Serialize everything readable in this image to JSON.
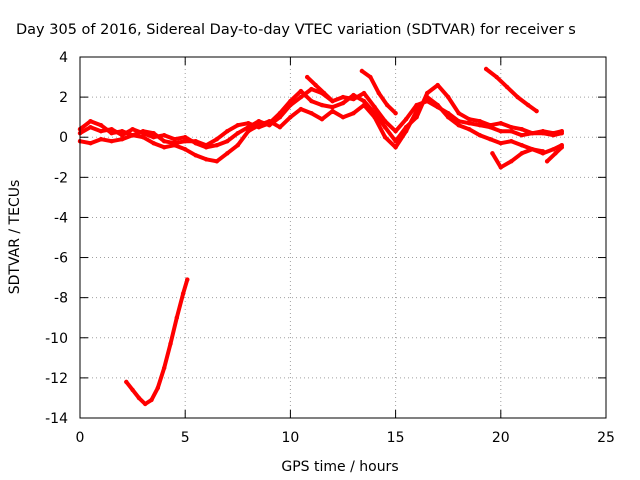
{
  "chart_data": {
    "type": "scatter",
    "title": "Day 305 of 2016, Sidereal Day-to-day VTEC variation (SDTVAR) for receiver s",
    "xlabel": "GPS time / hours",
    "ylabel": "SDTVAR / TECUs",
    "xlim": [
      0,
      25
    ],
    "ylim": [
      -14,
      4
    ],
    "x_ticks": [
      "0",
      "5",
      "10",
      "15",
      "20",
      "25"
    ],
    "y_ticks": [
      "4",
      "2",
      "0",
      "-2",
      "-4",
      "-6",
      "-8",
      "-10",
      "-12",
      "-14"
    ],
    "grid": true,
    "series_color": "#ff0000",
    "series": [
      {
        "segments": [
          {
            "x": [
              0.0,
              0.5,
              1.0,
              1.5,
              2.0,
              2.5,
              3.0,
              3.5,
              4.0,
              4.5,
              5.0,
              5.5,
              6.0,
              6.5,
              7.0,
              7.5,
              8.0,
              8.5,
              9.0,
              9.5,
              10.0,
              10.5,
              11.0,
              11.5,
              12.0,
              12.5,
              13.0,
              13.5,
              14.0,
              14.5,
              15.0,
              15.5,
              16.0,
              16.5,
              17.0,
              17.5,
              18.0,
              18.5,
              19.0,
              19.5,
              20.0,
              20.5,
              21.0,
              21.5,
              22.0,
              22.5,
              22.9
            ],
            "y": [
              0.2,
              0.5,
              0.3,
              0.4,
              0.1,
              0.4,
              0.2,
              0.0,
              0.1,
              -0.1,
              0.0,
              -0.3,
              -0.5,
              -0.4,
              -0.2,
              0.2,
              0.5,
              0.8,
              0.6,
              1.0,
              1.6,
              2.0,
              2.4,
              2.2,
              1.8,
              2.0,
              1.9,
              2.2,
              1.5,
              0.8,
              0.3,
              0.9,
              1.6,
              1.8,
              1.5,
              1.2,
              0.8,
              0.7,
              0.6,
              0.5,
              0.3,
              0.3,
              0.1,
              0.2,
              0.2,
              0.1,
              0.2
            ]
          },
          {
            "x": [
              0.0,
              0.5,
              1.0,
              1.5,
              2.0,
              2.5,
              3.0,
              3.5,
              4.0,
              4.5,
              5.0,
              5.5,
              6.0,
              6.5,
              7.0,
              7.5,
              8.0,
              8.5,
              9.0,
              9.5,
              10.0,
              10.5,
              11.0,
              11.5,
              12.0,
              12.5,
              13.0,
              13.5,
              14.0,
              14.5,
              15.0,
              15.5,
              16.0,
              16.5,
              17.0,
              17.5,
              18.0,
              18.5,
              19.0,
              19.5,
              20.0,
              20.5,
              21.0,
              21.5,
              22.0,
              22.5,
              22.9
            ],
            "y": [
              -0.2,
              -0.3,
              -0.1,
              -0.2,
              -0.1,
              0.1,
              0.0,
              -0.3,
              -0.5,
              -0.4,
              -0.6,
              -0.9,
              -1.1,
              -1.2,
              -0.8,
              -0.4,
              0.3,
              0.6,
              0.8,
              0.5,
              1.0,
              1.4,
              1.2,
              0.9,
              1.3,
              1.0,
              1.2,
              1.6,
              1.0,
              0.0,
              -0.5,
              0.3,
              1.3,
              2.0,
              1.6,
              1.0,
              0.6,
              0.4,
              0.1,
              -0.1,
              -0.3,
              -0.2,
              -0.4,
              -0.6,
              -0.8,
              -0.6,
              -0.4
            ]
          },
          {
            "x": [
              0.0,
              0.5,
              1.0,
              1.5,
              2.0,
              2.5,
              3.0,
              3.5,
              4.0,
              4.5,
              5.0,
              5.5,
              6.0,
              6.5,
              7.0,
              7.5,
              8.0,
              8.5,
              9.0,
              9.5,
              10.0,
              10.5,
              11.0,
              11.5,
              12.0,
              12.5,
              13.0,
              13.5,
              14.0,
              14.5,
              15.0,
              15.5,
              16.0,
              16.5,
              17.0,
              17.5,
              18.0,
              18.5,
              19.0,
              19.5,
              20.0,
              20.5,
              21.0,
              21.5,
              22.0,
              22.5,
              22.9
            ],
            "y": [
              0.4,
              0.8,
              0.6,
              0.2,
              0.3,
              0.1,
              0.3,
              0.2,
              -0.2,
              -0.3,
              -0.2,
              -0.2,
              -0.4,
              -0.1,
              0.3,
              0.6,
              0.7,
              0.5,
              0.7,
              1.2,
              1.8,
              2.3,
              1.8,
              1.6,
              1.5,
              1.7,
              2.1,
              1.8,
              1.2,
              0.5,
              -0.2,
              0.5,
              1.0,
              2.2,
              2.6,
              2.0,
              1.2,
              0.9,
              0.8,
              0.6,
              0.7,
              0.5,
              0.4,
              0.2,
              0.3,
              0.2,
              0.3
            ]
          },
          {
            "x": [
              13.4,
              13.8,
              14.2,
              14.6,
              15.0
            ],
            "y": [
              3.3,
              3.0,
              2.2,
              1.6,
              1.2
            ]
          },
          {
            "x": [
              10.8,
              11.2,
              11.6,
              12.0
            ],
            "y": [
              3.0,
              2.6,
              2.2,
              1.8
            ]
          },
          {
            "x": [
              19.3,
              19.8,
              20.3,
              20.8,
              21.3,
              21.7
            ],
            "y": [
              3.4,
              3.0,
              2.5,
              2.0,
              1.6,
              1.3
            ]
          },
          {
            "x": [
              19.6,
              20.0,
              20.5,
              21.0,
              21.5,
              22.0
            ],
            "y": [
              -0.8,
              -1.5,
              -1.2,
              -0.8,
              -0.6,
              -0.7
            ]
          },
          {
            "x": [
              22.2,
              22.6,
              22.9
            ],
            "y": [
              -1.2,
              -0.8,
              -0.5
            ]
          },
          {
            "x": [
              2.2,
              2.5,
              2.8,
              3.1,
              3.4,
              3.7,
              4.0,
              4.3,
              4.6,
              4.9,
              5.1
            ],
            "y": [
              -12.2,
              -12.6,
              -13.0,
              -13.3,
              -13.1,
              -12.5,
              -11.5,
              -10.3,
              -9.0,
              -7.8,
              -7.1
            ]
          }
        ]
      }
    ]
  }
}
